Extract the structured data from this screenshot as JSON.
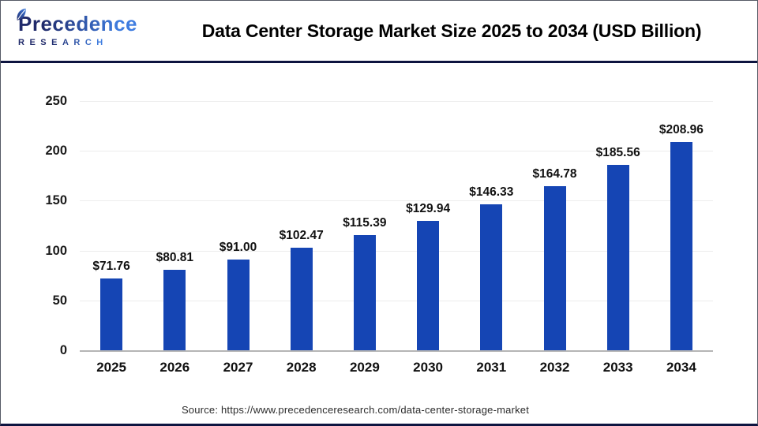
{
  "header": {
    "logo": {
      "name": "Precedence",
      "sub": "RESEARCH"
    }
  },
  "chart_data": {
    "type": "bar",
    "title": "Data Center Storage Market Size 2025 to 2034 (USD Billion)",
    "unit": "USD Billion",
    "categories": [
      "2025",
      "2026",
      "2027",
      "2028",
      "2029",
      "2030",
      "2031",
      "2032",
      "2033",
      "2034"
    ],
    "values": [
      71.76,
      80.81,
      91.0,
      102.47,
      115.39,
      129.94,
      146.33,
      164.78,
      185.56,
      208.96
    ],
    "value_labels": [
      "$71.76",
      "$80.81",
      "$91.00",
      "$102.47",
      "$115.39",
      "$129.94",
      "$146.33",
      "$164.78",
      "$185.56",
      "$208.96"
    ],
    "xlabel": "",
    "ylabel": "",
    "ylim": [
      0,
      250
    ],
    "y_ticks": [
      0,
      50,
      100,
      150,
      200,
      250
    ],
    "grid": "horizontal",
    "legend": "none",
    "bar_color": "#1545b4"
  },
  "footer": {
    "source": "Source: https://www.precedenceresearch.com/data-center-storage-market"
  },
  "colors": {
    "bar": "#1545b4",
    "grid_line": "#ececec",
    "axis_line": "#b5b5b5",
    "header_rule": "#0d1440",
    "logo_navy": "#202a6a",
    "logo_blue": "#3f7de0",
    "source_text": "#2b2b2b"
  }
}
